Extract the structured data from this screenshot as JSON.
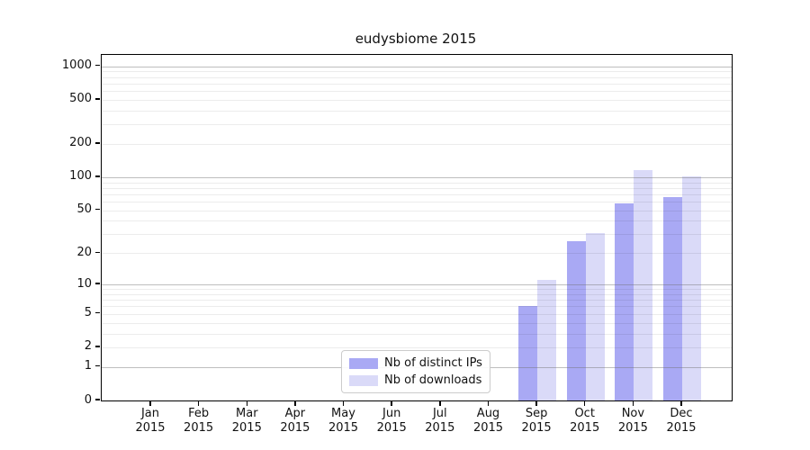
{
  "figure": {
    "background_color": "#ffffff",
    "axis_color": "#000000",
    "major_grid_color": "#c8c8c8",
    "minor_grid_color": "#ededed"
  },
  "chart_data": {
    "type": "bar",
    "title": "eudysbiome 2015",
    "categories": [
      "Jan",
      "Feb",
      "Mar",
      "Apr",
      "May",
      "Jun",
      "Jul",
      "Aug",
      "Sep",
      "Oct",
      "Nov",
      "Dec"
    ],
    "x_tick_second_line": "2015",
    "series": [
      {
        "name": "Nb of distinct IPs",
        "color": "#a9a9f4",
        "values": [
          0,
          0,
          0,
          0,
          0,
          0,
          0,
          0,
          6,
          26,
          58,
          66
        ]
      },
      {
        "name": "Nb of downloads",
        "color": "#dadaf8",
        "values": [
          0,
          0,
          0,
          0,
          0,
          0,
          0,
          0,
          11,
          31,
          115,
          102
        ]
      }
    ],
    "y_ticks": [
      0,
      1,
      2,
      5,
      10,
      20,
      50,
      100,
      200,
      500,
      1000
    ],
    "y_scale": "log1p",
    "ylim": [
      0,
      1200
    ],
    "grid": "on",
    "legend_position": "bottom-center"
  }
}
